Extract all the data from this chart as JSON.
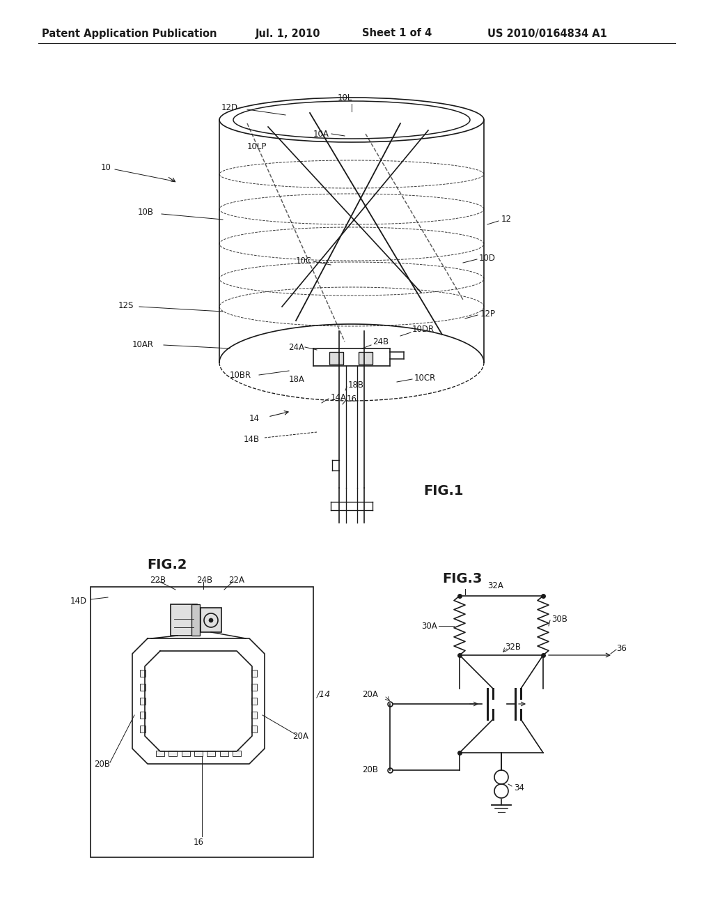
{
  "bg_color": "#ffffff",
  "line_color": "#1a1a1a",
  "header_text": "Patent Application Publication",
  "header_date": "Jul. 1, 2010",
  "header_sheet": "Sheet 1 of 4",
  "header_patent": "US 2010/0164834 A1",
  "fig1_label": "FIG.1",
  "fig2_label": "FIG.2",
  "fig3_label": "FIG.3"
}
